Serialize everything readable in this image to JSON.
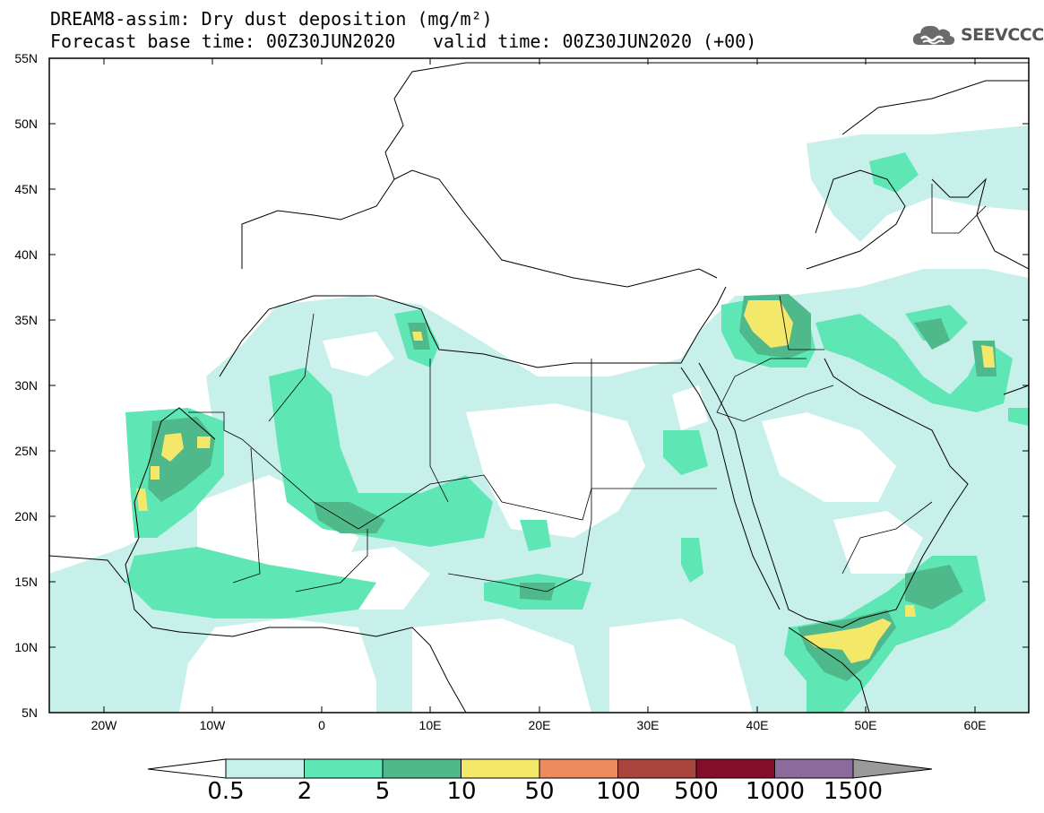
{
  "header": {
    "title_line1": "DREAM8-assim: Dry dust deposition (mg/m²)",
    "title_line2_left": "Forecast base time: 00Z30JUN2020",
    "title_line2_right": "valid time: 00Z30JUN2020 (+00)",
    "logo_text": "SEEVCCC",
    "logo_icon": "cloud-icon"
  },
  "map": {
    "lat_labels": [
      "55N",
      "50N",
      "45N",
      "40N",
      "35N",
      "30N",
      "25N",
      "20N",
      "15N",
      "10N",
      "5N"
    ],
    "lon_labels": [
      "20W",
      "10W",
      "0",
      "10E",
      "20E",
      "30E",
      "40E",
      "50E",
      "60E"
    ],
    "lat_range": [
      5,
      55
    ],
    "lon_range": [
      -25,
      65
    ]
  },
  "colorbar": {
    "labels": [
      "0.5",
      "2",
      "5",
      "10",
      "50",
      "100",
      "500",
      "1000",
      "1500"
    ],
    "colors": [
      "#c8f0ea",
      "#5ee6b4",
      "#4fb98b",
      "#f4e86b",
      "#ec8c5c",
      "#a8453f",
      "#840d2b",
      "#8c6a9b",
      "#9a9a9a"
    ]
  }
}
